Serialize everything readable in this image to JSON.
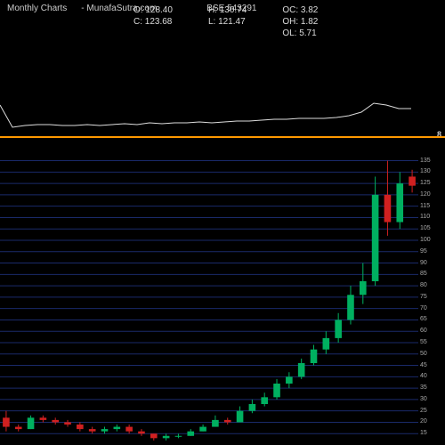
{
  "header": {
    "title": "Monthly Charts",
    "source": "- MunafaSutra.com",
    "symbol": "BSE 543291",
    "stats": {
      "O": "128.40",
      "C": "123.68",
      "H": "130.74",
      "L": "121.47",
      "OC": "3.82",
      "OH": "1.82",
      "OL": "5.71"
    }
  },
  "upperChart": {
    "line_color": "#dddddd",
    "points": [
      [
        0,
        70
      ],
      [
        14,
        95
      ],
      [
        28,
        93
      ],
      [
        42,
        92
      ],
      [
        56,
        92
      ],
      [
        70,
        93
      ],
      [
        84,
        93
      ],
      [
        98,
        92
      ],
      [
        112,
        93
      ],
      [
        126,
        92
      ],
      [
        140,
        91
      ],
      [
        154,
        92
      ],
      [
        168,
        90
      ],
      [
        182,
        91
      ],
      [
        196,
        90
      ],
      [
        210,
        90
      ],
      [
        224,
        89
      ],
      [
        238,
        90
      ],
      [
        252,
        89
      ],
      [
        266,
        88
      ],
      [
        280,
        88
      ],
      [
        294,
        87
      ],
      [
        308,
        86
      ],
      [
        322,
        86
      ],
      [
        336,
        85
      ],
      [
        350,
        85
      ],
      [
        364,
        85
      ],
      [
        378,
        84
      ],
      [
        392,
        82
      ],
      [
        406,
        78
      ],
      [
        420,
        68
      ],
      [
        434,
        70
      ],
      [
        448,
        74
      ],
      [
        462,
        74
      ]
    ],
    "tick_label": "8"
  },
  "divider_color": "#ff9900",
  "lowerChart": {
    "background": "#000000",
    "grid_color": "#1a2a6a",
    "type": "candlestick",
    "candle_up_color": "#00b060",
    "candle_down_color": "#d02020",
    "wick_color": "#cccccc",
    "x_count": 34,
    "y_min": 10,
    "y_max": 145,
    "y_labels": [
      {
        "v": 135,
        "t": "135"
      },
      {
        "v": 130,
        "t": "130"
      },
      {
        "v": 125,
        "t": "125"
      },
      {
        "v": 120,
        "t": "120"
      },
      {
        "v": 115,
        "t": "115"
      },
      {
        "v": 110,
        "t": "110"
      },
      {
        "v": 105,
        "t": "105"
      },
      {
        "v": 100,
        "t": "100"
      },
      {
        "v": 95,
        "t": "95"
      },
      {
        "v": 90,
        "t": "90"
      },
      {
        "v": 85,
        "t": "85"
      },
      {
        "v": 80,
        "t": "80"
      },
      {
        "v": 75,
        "t": "75"
      },
      {
        "v": 70,
        "t": "70"
      },
      {
        "v": 65,
        "t": "65"
      },
      {
        "v": 60,
        "t": "60"
      },
      {
        "v": 55,
        "t": "55"
      },
      {
        "v": 50,
        "t": "50"
      },
      {
        "v": 45,
        "t": "45"
      },
      {
        "v": 40,
        "t": "40"
      },
      {
        "v": 35,
        "t": "35"
      },
      {
        "v": 30,
        "t": "30"
      },
      {
        "v": 25,
        "t": "25"
      },
      {
        "v": 20,
        "t": "20"
      },
      {
        "v": 15,
        "t": "15"
      }
    ],
    "candles": [
      {
        "o": 22,
        "h": 25,
        "l": 16,
        "c": 18
      },
      {
        "o": 18,
        "h": 19,
        "l": 16,
        "c": 17
      },
      {
        "o": 17,
        "h": 23,
        "l": 17,
        "c": 22
      },
      {
        "o": 22,
        "h": 23,
        "l": 20,
        "c": 21
      },
      {
        "o": 21,
        "h": 22,
        "l": 19,
        "c": 20
      },
      {
        "o": 20,
        "h": 21,
        "l": 18,
        "c": 19
      },
      {
        "o": 19,
        "h": 20,
        "l": 16,
        "c": 17
      },
      {
        "o": 17,
        "h": 18,
        "l": 15,
        "c": 16
      },
      {
        "o": 16,
        "h": 18,
        "l": 15,
        "c": 17
      },
      {
        "o": 17,
        "h": 19,
        "l": 16,
        "c": 18
      },
      {
        "o": 18,
        "h": 19,
        "l": 15,
        "c": 16
      },
      {
        "o": 16,
        "h": 17,
        "l": 14,
        "c": 15
      },
      {
        "o": 15,
        "h": 15,
        "l": 12,
        "c": 13
      },
      {
        "o": 13,
        "h": 15,
        "l": 12,
        "c": 14
      },
      {
        "o": 14,
        "h": 15,
        "l": 13,
        "c": 14
      },
      {
        "o": 14,
        "h": 17,
        "l": 14,
        "c": 16
      },
      {
        "o": 16,
        "h": 19,
        "l": 16,
        "c": 18
      },
      {
        "o": 18,
        "h": 23,
        "l": 18,
        "c": 21
      },
      {
        "o": 21,
        "h": 22,
        "l": 19,
        "c": 20
      },
      {
        "o": 20,
        "h": 27,
        "l": 20,
        "c": 25
      },
      {
        "o": 25,
        "h": 30,
        "l": 24,
        "c": 28
      },
      {
        "o": 28,
        "h": 33,
        "l": 27,
        "c": 31
      },
      {
        "o": 31,
        "h": 39,
        "l": 30,
        "c": 37
      },
      {
        "o": 37,
        "h": 42,
        "l": 35,
        "c": 40
      },
      {
        "o": 40,
        "h": 48,
        "l": 39,
        "c": 46
      },
      {
        "o": 46,
        "h": 54,
        "l": 45,
        "c": 52
      },
      {
        "o": 52,
        "h": 60,
        "l": 50,
        "c": 57
      },
      {
        "o": 57,
        "h": 68,
        "l": 55,
        "c": 65
      },
      {
        "o": 65,
        "h": 80,
        "l": 63,
        "c": 76
      },
      {
        "o": 76,
        "h": 90,
        "l": 72,
        "c": 82
      },
      {
        "o": 82,
        "h": 128,
        "l": 80,
        "c": 120
      },
      {
        "o": 120,
        "h": 135,
        "l": 102,
        "c": 108
      },
      {
        "o": 108,
        "h": 130,
        "l": 105,
        "c": 125
      },
      {
        "o": 128,
        "h": 131,
        "l": 121,
        "c": 124
      }
    ]
  }
}
